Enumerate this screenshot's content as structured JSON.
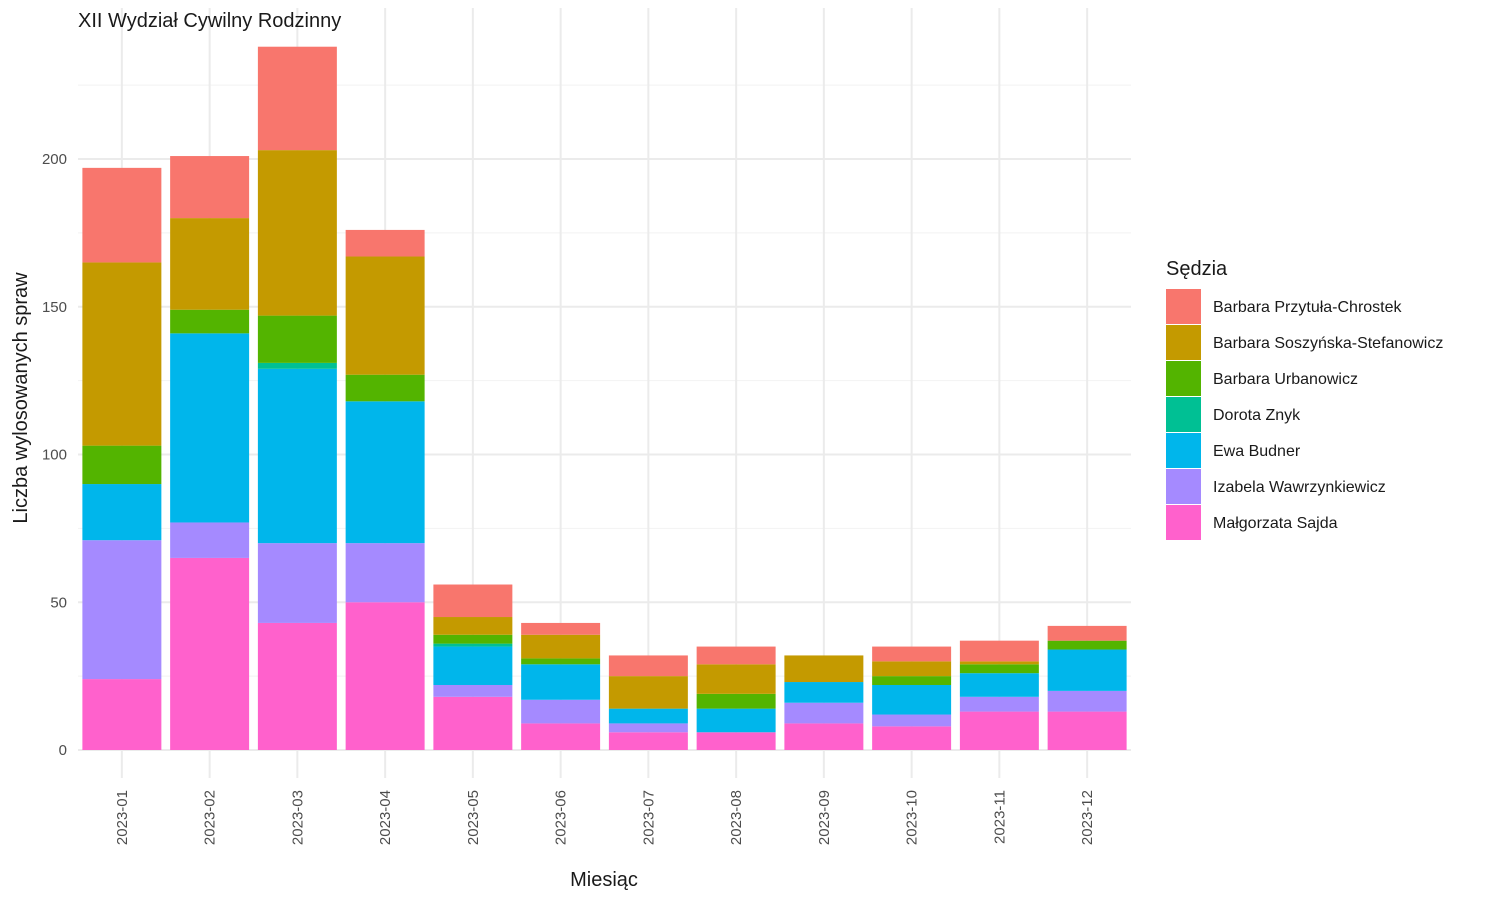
{
  "chart_data": {
    "type": "bar",
    "stacked": true,
    "title": "XII Wydział Cywilny Rodzinny",
    "xlabel": "Miesiąc",
    "ylabel": "Liczba wylosowanych spraw",
    "ylim": [
      0,
      240
    ],
    "yticks": [
      0,
      50,
      100,
      150,
      200
    ],
    "grid": true,
    "legend_title": "Sędzia",
    "legend_position": "right",
    "categories": [
      "2023-01",
      "2023-02",
      "2023-03",
      "2023-04",
      "2023-05",
      "2023-06",
      "2023-07",
      "2023-08",
      "2023-09",
      "2023-10",
      "2023-11",
      "2023-12"
    ],
    "series": [
      {
        "name": "Małgorzata Sajda",
        "color": "#FF61CC",
        "values": [
          24,
          65,
          43,
          50,
          18,
          9,
          6,
          6,
          9,
          8,
          13,
          13
        ]
      },
      {
        "name": "Izabela Wawrzynkiewicz",
        "color": "#A58AFF",
        "values": [
          47,
          12,
          27,
          20,
          4,
          8,
          3,
          0,
          7,
          4,
          5,
          7
        ]
      },
      {
        "name": "Ewa Budner",
        "color": "#00B6EB",
        "values": [
          19,
          64,
          59,
          48,
          13,
          12,
          5,
          8,
          7,
          10,
          8,
          14
        ]
      },
      {
        "name": "Dorota Znyk",
        "color": "#00C094",
        "values": [
          0,
          0,
          2,
          0,
          1,
          0,
          0,
          0,
          0,
          0,
          0,
          0
        ]
      },
      {
        "name": "Barbara Urbanowicz",
        "color": "#53B400",
        "values": [
          13,
          8,
          16,
          9,
          3,
          2,
          0,
          5,
          0,
          3,
          3,
          3
        ]
      },
      {
        "name": "Barbara Soszyńska-Stefanowicz",
        "color": "#C49A00",
        "values": [
          62,
          31,
          56,
          40,
          6,
          8,
          11,
          10,
          9,
          5,
          1,
          0
        ]
      },
      {
        "name": "Barbara Przytuła-Chrostek",
        "color": "#F8766D",
        "values": [
          32,
          21,
          35,
          9,
          11,
          4,
          7,
          6,
          0,
          5,
          7,
          5
        ]
      }
    ],
    "legend_order": [
      "Barbara Przytuła-Chrostek",
      "Barbara Soszyńska-Stefanowicz",
      "Barbara Urbanowicz",
      "Dorota Znyk",
      "Ewa Budner",
      "Izabela Wawrzynkiewicz",
      "Małgorzata Sajda"
    ]
  }
}
